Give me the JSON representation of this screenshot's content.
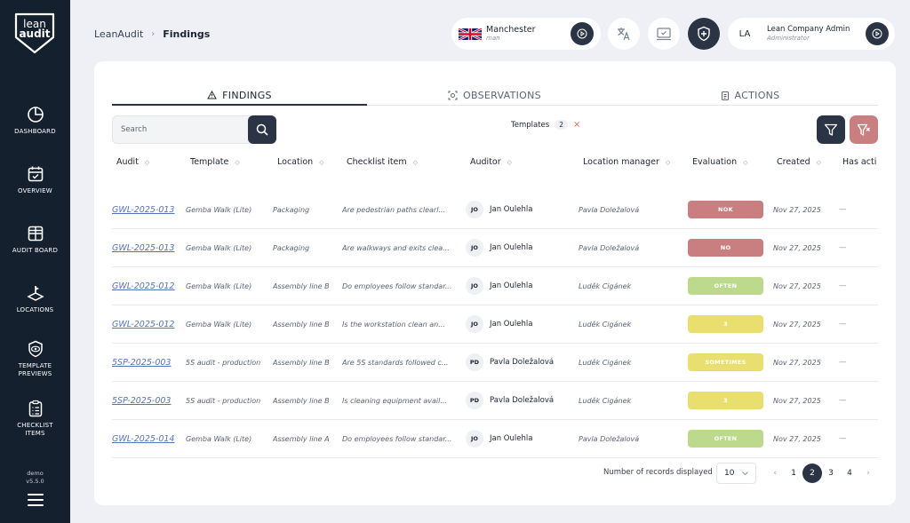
{
  "sidebar": {
    "logo_line1": "lean",
    "logo_line2": "audit",
    "items": [
      {
        "label": "DASHBOARD"
      },
      {
        "label": "OVERVIEW"
      },
      {
        "label": "AUDIT BOARD"
      },
      {
        "label": "LOCATIONS"
      },
      {
        "label": "TEMPLATE\nPREVIEWS"
      },
      {
        "label": "CHECKLIST\nITEMS"
      }
    ],
    "env": "demo",
    "version": "v5.5.0"
  },
  "breadcrumb": {
    "root": "LeanAudit",
    "sep": "›",
    "current": "Findings"
  },
  "location_pill": {
    "name": "Manchester",
    "code": "man"
  },
  "user_pill": {
    "initials": "LA",
    "name": "Lean Company Admin",
    "role": "Administrator"
  },
  "tabs": [
    {
      "label": "FINDINGS",
      "icon": "warning-icon"
    },
    {
      "label": "OBSERVATIONS",
      "icon": "observation-icon"
    },
    {
      "label": "ACTIONS",
      "icon": "clipboard-icon"
    }
  ],
  "search": {
    "placeholder": "Search",
    "value": ""
  },
  "filter_chip": {
    "label": "Templates",
    "count": "2",
    "remove": "×"
  },
  "table": {
    "columns": [
      "Audit",
      "Template",
      "Location",
      "Checklist item",
      "Auditor",
      "Location manager",
      "Evaluation",
      "Created",
      "Has acti"
    ],
    "rows": [
      {
        "audit": "GWL-2025-013",
        "template": "Gemba Walk (Lite)",
        "location": "Packaging",
        "item": "Are pedestrian paths clearl...",
        "av": "JO",
        "auditor": "Jan Oulehla",
        "manager": "Pavla Doležalová",
        "eval": "NOK",
        "eval_color": "#c97f7f",
        "created": "Nov 27, 2025",
        "has": "—"
      },
      {
        "audit": "GWL-2025-013",
        "template": "Gemba Walk (Lite)",
        "location": "Packaging",
        "item": "Are walkways and exits clea...",
        "av": "JO",
        "auditor": "Jan Oulehla",
        "manager": "Pavla Doležalová",
        "eval": "NO",
        "eval_color": "#c97f7f",
        "created": "Nov 27, 2025",
        "has": "—"
      },
      {
        "audit": "GWL-2025-012",
        "template": "Gemba Walk (Lite)",
        "location": "Assembly line B",
        "item": "Do employees follow standar...",
        "av": "JO",
        "auditor": "Jan Oulehla",
        "manager": "Luděk Cigánek",
        "eval": "OFTEN",
        "eval_color": "#bcd98c",
        "created": "Nov 27, 2025",
        "has": "—"
      },
      {
        "audit": "GWL-2025-012",
        "template": "Gemba Walk (Lite)",
        "location": "Assembly line B",
        "item": "Is the workstation clean an...",
        "av": "JO",
        "auditor": "Jan Oulehla",
        "manager": "Luděk Cigánek",
        "eval": "3",
        "eval_color": "#e9df6f",
        "created": "Nov 27, 2025",
        "has": "—"
      },
      {
        "audit": "5SP-2025-003",
        "template": "5S audit - production",
        "location": "Assembly line B",
        "item": "Are 5S standards followed c...",
        "av": "PD",
        "auditor": "Pavla Doležalová",
        "manager": "Luděk Cigánek",
        "eval": "SOMETIMES",
        "eval_color": "#e9df6f",
        "created": "Nov 27, 2025",
        "has": "—"
      },
      {
        "audit": "5SP-2025-003",
        "template": "5S audit - production",
        "location": "Assembly line B",
        "item": "Is cleaning equipment avail...",
        "av": "PD",
        "auditor": "Pavla Doležalová",
        "manager": "Luděk Cigánek",
        "eval": "3",
        "eval_color": "#e9df6f",
        "created": "Nov 27, 2025",
        "has": "—"
      },
      {
        "audit": "GWL-2025-014",
        "template": "Gemba Walk (Lite)",
        "location": "Assembly line A",
        "item": "Do employees follow standar...",
        "av": "JO",
        "auditor": "Jan Oulehla",
        "manager": "Pavla Doležalová",
        "eval": "OFTEN",
        "eval_color": "#bcd98c",
        "created": "Nov 27, 2025",
        "has": "—"
      }
    ]
  },
  "pagination": {
    "records_label": "Number of records displayed",
    "page_size": "10",
    "prev": "‹",
    "next": "›",
    "pages": [
      "1",
      "2",
      "3",
      "4"
    ],
    "current": "2"
  },
  "colors": {
    "sidebar": "#15202f",
    "primary": "#2b3445",
    "filter_reset": "#c97f7f",
    "link": "#5573b8"
  }
}
